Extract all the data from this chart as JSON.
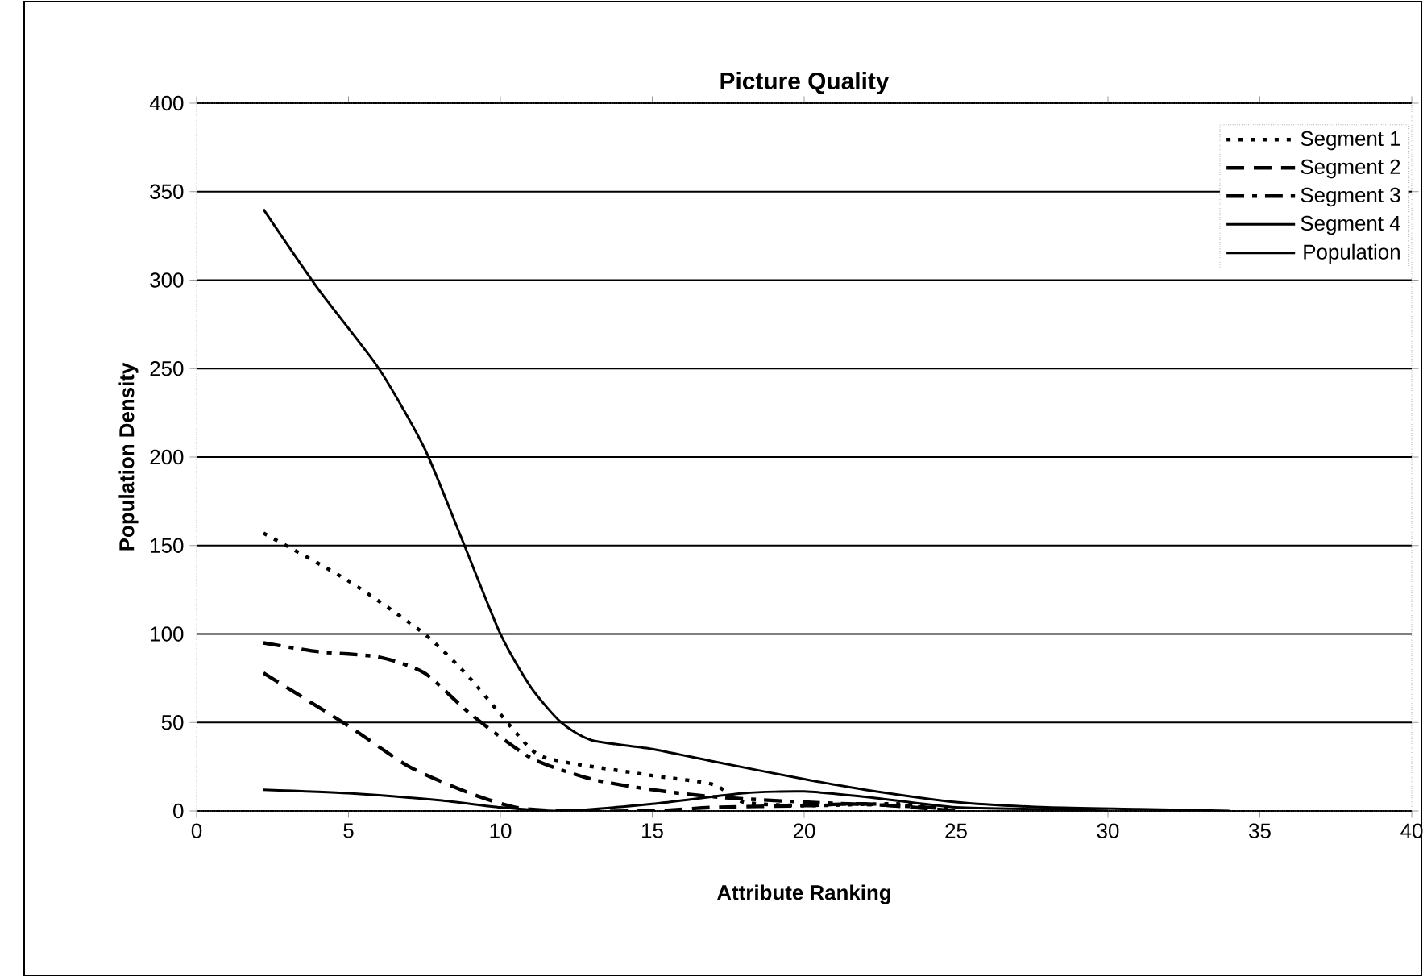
{
  "chart_data": {
    "type": "line",
    "title": "Picture Quality",
    "xlabel": "Attribute Ranking",
    "ylabel": "Population Density",
    "xlim": [
      0,
      40
    ],
    "ylim": [
      0,
      400
    ],
    "xticks": [
      0,
      5,
      10,
      15,
      20,
      25,
      30,
      35,
      40
    ],
    "yticks": [
      0,
      50,
      100,
      150,
      200,
      250,
      300,
      350,
      400
    ],
    "grid": "y",
    "legend": "top right",
    "marker": "none",
    "series": [
      {
        "name": "Segment 1",
        "color": "#000000",
        "line_style": "dotted",
        "x": [
          2.2,
          5,
          7.5,
          9,
          11,
          12,
          15,
          17,
          18,
          20,
          23,
          25
        ],
        "values": [
          157,
          130,
          100,
          75,
          35,
          28,
          20,
          15,
          5,
          3,
          4,
          1
        ]
      },
      {
        "name": "Segment 2",
        "color": "#000000",
        "line_style": "dashed",
        "x": [
          2.2,
          5,
          7,
          9,
          10.5,
          12,
          15,
          17,
          20,
          22,
          25
        ],
        "values": [
          78,
          48,
          25,
          10,
          2,
          0,
          0,
          2,
          3,
          4,
          0
        ]
      },
      {
        "name": "Segment 3",
        "color": "#000000",
        "line_style": "dashdot",
        "x": [
          2.2,
          4,
          6,
          7.5,
          9,
          11,
          13,
          15,
          17,
          20,
          23,
          25
        ],
        "values": [
          95,
          90,
          87,
          78,
          55,
          30,
          18,
          12,
          8,
          5,
          3,
          1
        ]
      },
      {
        "name": "Segment 4",
        "color": "#000000",
        "line_style": "solid",
        "x": [
          2.2,
          5,
          8,
          10,
          12,
          15,
          18,
          20,
          22,
          25,
          28,
          30
        ],
        "values": [
          12,
          10,
          6,
          2,
          0,
          4,
          10,
          11,
          8,
          2,
          1,
          0
        ]
      },
      {
        "name": "Population",
        "color": "#000000",
        "line_style": "solid",
        "x": [
          2.2,
          4,
          6,
          7.5,
          8.7,
          10,
          11,
          12,
          13,
          15,
          17,
          20,
          22,
          25,
          28,
          31,
          34
        ],
        "values": [
          340,
          295,
          250,
          205,
          155,
          100,
          70,
          50,
          40,
          35,
          28,
          18,
          12,
          5,
          2,
          1,
          0
        ]
      }
    ]
  }
}
